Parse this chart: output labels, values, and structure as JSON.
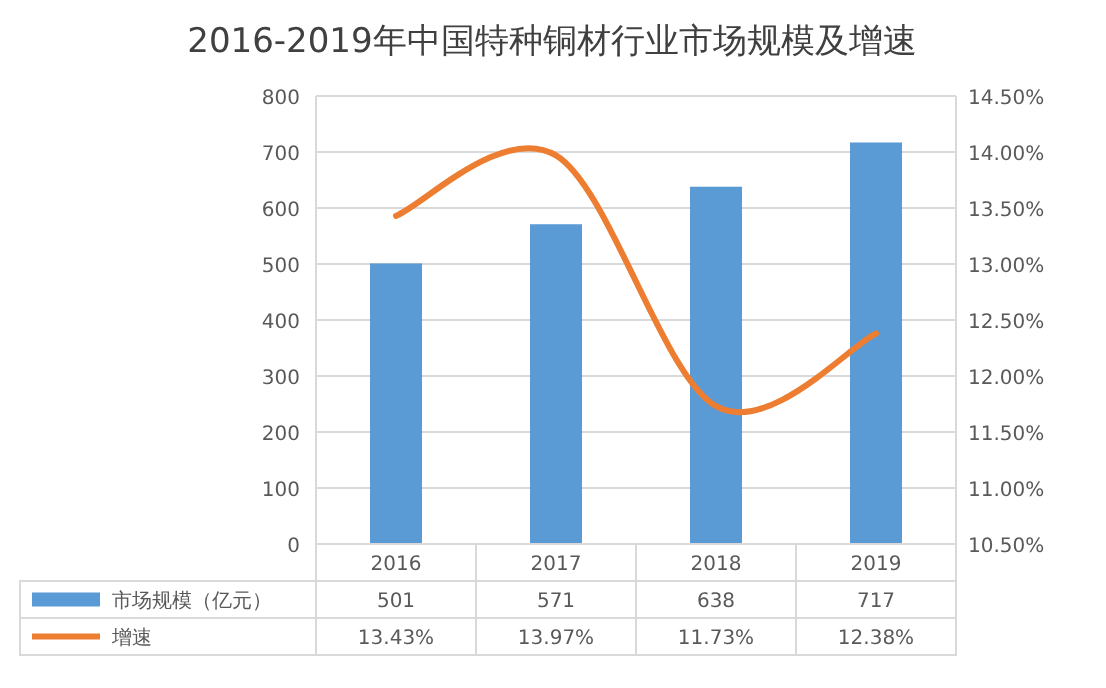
{
  "chart_data": {
    "type": "bar",
    "title": "2016-2019年中国特种铜材行业市场规模及增速",
    "categories": [
      "2016",
      "2017",
      "2018",
      "2019"
    ],
    "series": [
      {
        "name": "市场规模（亿元）",
        "color": "#5b9bd5",
        "values": [
          501,
          571,
          638,
          717
        ],
        "value_labels": [
          "501",
          "571",
          "638",
          "717"
        ]
      },
      {
        "name": "增速",
        "type": "line",
        "axis": "y2",
        "color": "#ed7d31",
        "values": [
          13.43,
          13.97,
          11.73,
          12.38
        ],
        "value_labels": [
          "13.43%",
          "13.97%",
          "11.73%",
          "12.38%"
        ]
      }
    ],
    "ylim": [
      0,
      800
    ],
    "yticks": [
      0,
      100,
      200,
      300,
      400,
      500,
      600,
      700,
      800
    ],
    "y2lim": [
      10.5,
      14.5
    ],
    "y2ticks": [
      {
        "value": 10.5,
        "label": "10.50%"
      },
      {
        "value": 11,
        "label": "11.00%"
      },
      {
        "value": 11.5,
        "label": "11.50%"
      },
      {
        "value": 12,
        "label": "12.00%"
      },
      {
        "value": 12.5,
        "label": "12.50%"
      },
      {
        "value": 13,
        "label": "13.00%"
      },
      {
        "value": 13.5,
        "label": "13.50%"
      },
      {
        "value": 14,
        "label": "14.00%"
      },
      {
        "value": 14.5,
        "label": "14.50%"
      }
    ],
    "grid": "y",
    "legend": "bottom"
  }
}
